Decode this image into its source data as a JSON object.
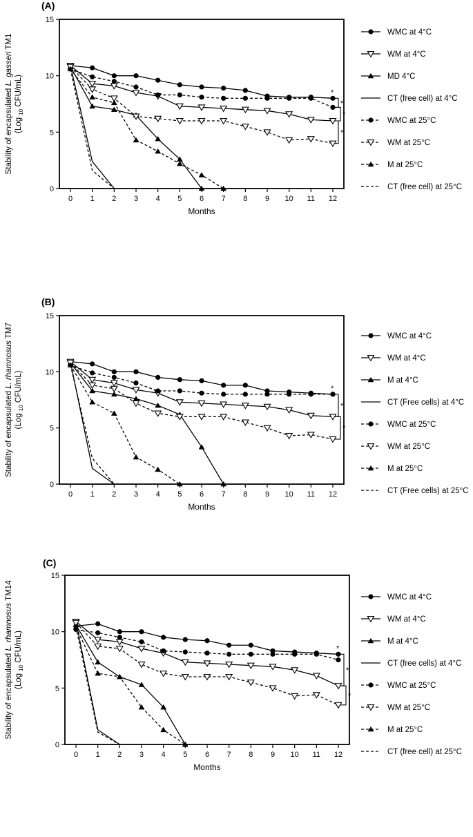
{
  "chart_data": [
    {
      "type": "line",
      "panel_label": "(A)",
      "ylabel_parts": [
        "Stability of encapsulated ",
        "L. gasseri",
        " TM1"
      ],
      "ylabel_unit": [
        "(Log ",
        "10",
        " CFU/mL)"
      ],
      "xlabel": "Months",
      "x": [
        0,
        1,
        2,
        3,
        4,
        5,
        6,
        7,
        8,
        9,
        10,
        11,
        12
      ],
      "xlim": [
        0,
        12
      ],
      "ylim": [
        0,
        15
      ],
      "yticks": [
        0,
        5,
        10,
        15
      ],
      "legend_position": "right",
      "series": [
        {
          "name": "WMC at 4°C",
          "style": "solid",
          "marker": "circle",
          "x": [
            0,
            1,
            2,
            3,
            4,
            5,
            6,
            7,
            8,
            9,
            10,
            11,
            12
          ],
          "values": [
            10.9,
            10.7,
            10.0,
            10.0,
            9.6,
            9.2,
            9.0,
            8.9,
            8.7,
            8.2,
            8.1,
            8.1,
            8.0
          ]
        },
        {
          "name": "WM at 4°C",
          "style": "solid",
          "marker": "triangle-down",
          "x": [
            0,
            1,
            2,
            3,
            4,
            5,
            6,
            7,
            8,
            9,
            10,
            11,
            12
          ],
          "values": [
            10.9,
            9.3,
            9.1,
            8.5,
            8.2,
            7.3,
            7.2,
            7.1,
            7.0,
            6.9,
            6.6,
            6.1,
            6.0
          ]
        },
        {
          "name": "MD 4°C",
          "style": "solid",
          "marker": "triangle-up",
          "x": [
            0,
            1,
            2,
            3,
            4,
            5,
            6
          ],
          "values": [
            10.8,
            7.3,
            7.0,
            6.5,
            4.4,
            2.6,
            0
          ]
        },
        {
          "name": "CT (free cell) at 4°C",
          "style": "solid",
          "marker": "none",
          "x": [
            0,
            1,
            2
          ],
          "values": [
            10.9,
            2.4,
            0
          ]
        },
        {
          "name": "WMC at 25°C",
          "style": "dashed",
          "marker": "circle",
          "x": [
            0,
            1,
            2,
            3,
            4,
            5,
            6,
            7,
            8,
            9,
            10,
            11,
            12
          ],
          "values": [
            10.6,
            9.9,
            9.5,
            9.0,
            8.3,
            8.3,
            8.1,
            8.0,
            8.0,
            8.0,
            8.0,
            8.0,
            7.2
          ]
        },
        {
          "name": "WM at 25°C",
          "style": "dashed",
          "marker": "triangle-down",
          "x": [
            0,
            1,
            2,
            3,
            4,
            5,
            6,
            7,
            8,
            9,
            10,
            11,
            12
          ],
          "values": [
            10.8,
            8.8,
            8.0,
            6.4,
            6.2,
            6.0,
            6.0,
            6.0,
            5.5,
            5.0,
            4.3,
            4.4,
            4.0
          ]
        },
        {
          "name": "M at 25°C",
          "style": "dashed",
          "marker": "triangle-up",
          "x": [
            0,
            1,
            2,
            3,
            4,
            5,
            6,
            7
          ],
          "values": [
            10.6,
            8.1,
            7.6,
            4.3,
            3.3,
            2.2,
            1.2,
            0
          ]
        },
        {
          "name": "CT (free cell)  at 25°C",
          "style": "dashed",
          "marker": "none",
          "x": [
            0,
            1,
            2
          ],
          "values": [
            10.6,
            1.6,
            0
          ]
        }
      ],
      "significance": {
        "at_x": 12,
        "brackets": [
          [
            8.0,
            7.2
          ],
          [
            7.2,
            6.0
          ],
          [
            6.0,
            4.0
          ]
        ],
        "marks": [
          "*",
          "*",
          "*"
        ]
      }
    },
    {
      "type": "line",
      "panel_label": "(B)",
      "ylabel_parts": [
        "Stability of encapsulated ",
        "L. rhamnosus",
        " TM7"
      ],
      "ylabel_unit": [
        "(Log ",
        "10",
        " CFU/mL)"
      ],
      "xlabel": "Months",
      "x": [
        0,
        1,
        2,
        3,
        4,
        5,
        6,
        7,
        8,
        9,
        10,
        11,
        12
      ],
      "xlim": [
        0,
        12
      ],
      "ylim": [
        0,
        15
      ],
      "yticks": [
        0,
        5,
        10,
        15
      ],
      "legend_position": "right",
      "series": [
        {
          "name": "WMC at 4°C",
          "style": "solid",
          "marker": "circle",
          "x": [
            0,
            1,
            2,
            3,
            4,
            5,
            6,
            7,
            8,
            9,
            10,
            11,
            12
          ],
          "values": [
            10.9,
            10.7,
            10.0,
            10.0,
            9.5,
            9.3,
            9.2,
            8.8,
            8.8,
            8.3,
            8.2,
            8.1,
            8.0
          ]
        },
        {
          "name": "WM at 4°C",
          "style": "solid",
          "marker": "triangle-down",
          "x": [
            0,
            1,
            2,
            3,
            4,
            5,
            6,
            7,
            8,
            9,
            10,
            11,
            12
          ],
          "values": [
            10.9,
            9.3,
            9.0,
            8.4,
            8.1,
            7.3,
            7.2,
            7.1,
            7.0,
            6.9,
            6.6,
            6.1,
            6.0
          ]
        },
        {
          "name": "M at 4°C",
          "style": "solid",
          "marker": "triangle-up",
          "x": [
            0,
            1,
            2,
            3,
            4,
            5,
            6,
            7
          ],
          "values": [
            10.8,
            8.3,
            8.0,
            7.6,
            7.0,
            6.2,
            3.3,
            0
          ]
        },
        {
          "name": "CT (Free cells) at 4°C",
          "style": "solid",
          "marker": "none",
          "x": [
            0,
            1,
            2
          ],
          "values": [
            10.9,
            1.4,
            0
          ]
        },
        {
          "name": "WMC at 25°C",
          "style": "dashed",
          "marker": "circle",
          "x": [
            0,
            1,
            2,
            3,
            4,
            5,
            6,
            7,
            8,
            9,
            10,
            11,
            12
          ],
          "values": [
            10.6,
            9.9,
            9.5,
            9.0,
            8.3,
            8.3,
            8.1,
            8.0,
            8.0,
            8.0,
            8.0,
            8.0,
            8.0
          ]
        },
        {
          "name": "WM at 25°C",
          "style": "dashed",
          "marker": "triangle-down",
          "x": [
            0,
            1,
            2,
            3,
            4,
            5,
            6,
            7,
            8,
            9,
            10,
            11,
            12
          ],
          "values": [
            10.8,
            8.8,
            8.5,
            7.2,
            6.3,
            6.0,
            6.0,
            6.0,
            5.5,
            5.0,
            4.3,
            4.4,
            4.0
          ]
        },
        {
          "name": "M at 25°C",
          "style": "dashed",
          "marker": "triangle-up",
          "x": [
            0,
            1,
            2,
            3,
            4,
            5
          ],
          "values": [
            10.6,
            7.3,
            6.3,
            2.4,
            1.3,
            0
          ]
        },
        {
          "name": "CT (Free cells) at 25°C",
          "style": "dashed",
          "marker": "none",
          "x": [
            0,
            1,
            2
          ],
          "values": [
            10.6,
            2.3,
            0
          ]
        }
      ],
      "significance": {
        "at_x": 12,
        "brackets": [
          [
            8.0,
            6.0
          ],
          [
            6.0,
            4.0
          ]
        ],
        "marks": [
          "*",
          "*",
          "*"
        ]
      }
    },
    {
      "type": "line",
      "panel_label": "(C)",
      "ylabel_parts": [
        "Stability of encapsulated ",
        "L. rhamnosus",
        " TM14"
      ],
      "ylabel_unit": [
        "(Log ",
        "10",
        " CFU/mL)"
      ],
      "xlabel": "Months",
      "x": [
        0,
        1,
        2,
        3,
        4,
        5,
        6,
        7,
        8,
        9,
        10,
        11,
        12
      ],
      "xlim": [
        0,
        12
      ],
      "ylim": [
        0,
        15
      ],
      "yticks": [
        0,
        5,
        10,
        15
      ],
      "legend_position": "right",
      "series": [
        {
          "name": "WMC at 4°C",
          "style": "solid",
          "marker": "circle",
          "x": [
            0,
            1,
            2,
            3,
            4,
            5,
            6,
            7,
            8,
            9,
            10,
            11,
            12
          ],
          "values": [
            10.5,
            10.7,
            10.0,
            10.0,
            9.5,
            9.3,
            9.2,
            8.8,
            8.8,
            8.3,
            8.2,
            8.1,
            8.0
          ]
        },
        {
          "name": "WM at 4°C",
          "style": "solid",
          "marker": "triangle-down",
          "x": [
            0,
            1,
            2,
            3,
            4,
            5,
            6,
            7,
            8,
            9,
            10,
            11,
            12
          ],
          "values": [
            10.9,
            9.3,
            9.1,
            8.5,
            8.1,
            7.3,
            7.2,
            7.1,
            7.0,
            6.9,
            6.6,
            6.1,
            5.2
          ]
        },
        {
          "name": "M at 4°C",
          "style": "solid",
          "marker": "triangle-up",
          "x": [
            0,
            1,
            2,
            3,
            4,
            5
          ],
          "values": [
            10.6,
            7.3,
            6.0,
            5.3,
            3.3,
            0
          ]
        },
        {
          "name": "CT (free cells) at 4°C",
          "style": "solid",
          "marker": "none",
          "x": [
            0,
            1,
            2
          ],
          "values": [
            10.9,
            1.3,
            0
          ]
        },
        {
          "name": "WMC at 25°C",
          "style": "dashed",
          "marker": "circle",
          "x": [
            0,
            1,
            2,
            3,
            4,
            5,
            6,
            7,
            8,
            9,
            10,
            11,
            12
          ],
          "values": [
            10.2,
            9.9,
            9.5,
            9.1,
            8.3,
            8.2,
            8.1,
            8.0,
            8.0,
            8.0,
            8.0,
            8.0,
            7.5
          ]
        },
        {
          "name": "WM at 25°C",
          "style": "dashed",
          "marker": "triangle-down",
          "x": [
            0,
            1,
            2,
            3,
            4,
            5,
            6,
            7,
            8,
            9,
            10,
            11,
            12
          ],
          "values": [
            10.8,
            8.7,
            8.5,
            7.1,
            6.3,
            6.0,
            6.0,
            6.0,
            5.5,
            5.0,
            4.3,
            4.4,
            3.5
          ]
        },
        {
          "name": "M at 25°C",
          "style": "dashed",
          "marker": "triangle-up",
          "x": [
            0,
            1,
            2,
            3,
            4,
            5
          ],
          "values": [
            10.4,
            6.3,
            6.0,
            3.3,
            1.3,
            0
          ]
        },
        {
          "name": "CT (free cell) at 25°C",
          "style": "dashed",
          "marker": "none",
          "x": [
            0,
            1,
            2
          ],
          "values": [
            10.4,
            1.1,
            0
          ]
        }
      ],
      "significance": {
        "at_x": 12,
        "brackets": [
          [
            8.0,
            5.2
          ],
          [
            5.2,
            3.5
          ]
        ],
        "marks": [
          "*",
          "*",
          "*",
          "*"
        ]
      }
    }
  ]
}
